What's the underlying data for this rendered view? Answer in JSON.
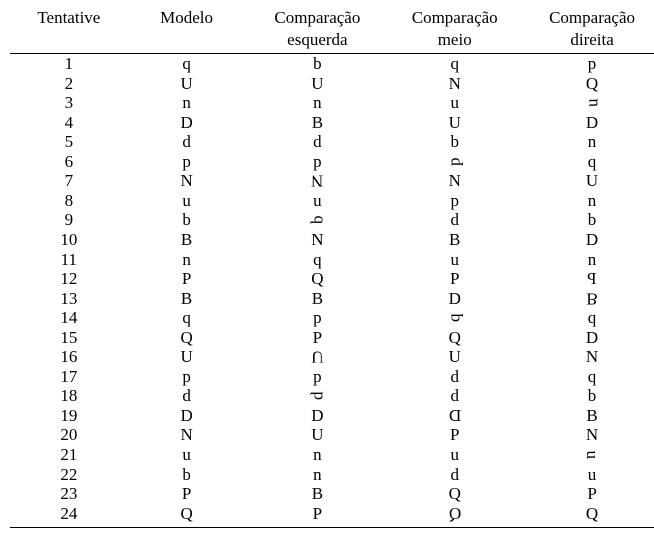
{
  "table": {
    "type": "table",
    "columns": [
      {
        "key": "c1",
        "label_top": "Tentative",
        "label_bottom": "",
        "width_pct": 18,
        "align": "center"
      },
      {
        "key": "c2",
        "label_top": "Modelo",
        "label_bottom": "",
        "width_pct": 18,
        "align": "center"
      },
      {
        "key": "c3",
        "label_top": "Comparação",
        "label_bottom": "esquerda",
        "width_pct": 22,
        "align": "center"
      },
      {
        "key": "c4",
        "label_top": "Comparação",
        "label_bottom": "meio",
        "width_pct": 20,
        "align": "center"
      },
      {
        "key": "c5",
        "label_top": "Comparação",
        "label_bottom": "direita",
        "width_pct": 22,
        "align": "center"
      }
    ],
    "header_border_color": "#000000",
    "footer_border_color": "#000000",
    "background_color": "#ffffff",
    "text_color": "#000000",
    "font_family": "Times New Roman",
    "header_fontsize_pt": 13,
    "body_fontsize_pt": 13,
    "rows": [
      {
        "n": "1",
        "m": {
          "t": "q"
        },
        "l": {
          "t": "b"
        },
        "mid": {
          "t": "q"
        },
        "r": {
          "t": "p"
        }
      },
      {
        "n": "2",
        "m": {
          "t": "U"
        },
        "l": {
          "t": "U"
        },
        "mid": {
          "t": "N"
        },
        "r": {
          "t": "Q"
        }
      },
      {
        "n": "3",
        "m": {
          "t": "n"
        },
        "l": {
          "t": "n"
        },
        "mid": {
          "t": "u"
        },
        "r": {
          "t": "u",
          "x": "rot270"
        }
      },
      {
        "n": "4",
        "m": {
          "t": "D"
        },
        "l": {
          "t": "B"
        },
        "mid": {
          "t": "U"
        },
        "r": {
          "t": "D"
        }
      },
      {
        "n": "5",
        "m": {
          "t": "d"
        },
        "l": {
          "t": "d"
        },
        "mid": {
          "t": "b"
        },
        "r": {
          "t": "n"
        }
      },
      {
        "n": "6",
        "m": {
          "t": "p"
        },
        "l": {
          "t": "p"
        },
        "mid": {
          "t": "p",
          "x": "rot270"
        },
        "r": {
          "t": "q"
        }
      },
      {
        "n": "7",
        "m": {
          "t": "N"
        },
        "l": {
          "t": "N",
          "x": "rot180"
        },
        "mid": {
          "t": "N"
        },
        "r": {
          "t": "U"
        }
      },
      {
        "n": "8",
        "m": {
          "t": "u"
        },
        "l": {
          "t": "u"
        },
        "mid": {
          "t": "p"
        },
        "r": {
          "t": "n"
        }
      },
      {
        "n": "9",
        "m": {
          "t": "b"
        },
        "l": {
          "t": "b",
          "x": "rot270"
        },
        "mid": {
          "t": "d"
        },
        "r": {
          "t": "b"
        }
      },
      {
        "n": "10",
        "m": {
          "t": "B"
        },
        "l": {
          "t": "N"
        },
        "mid": {
          "t": "B"
        },
        "r": {
          "t": "D"
        }
      },
      {
        "n": "11",
        "m": {
          "t": "n"
        },
        "l": {
          "t": "q"
        },
        "mid": {
          "t": "u"
        },
        "r": {
          "t": "n"
        }
      },
      {
        "n": "12",
        "m": {
          "t": "P"
        },
        "l": {
          "t": "Q"
        },
        "mid": {
          "t": "P"
        },
        "r": {
          "t": "P",
          "x": "mirh"
        }
      },
      {
        "n": "13",
        "m": {
          "t": "B"
        },
        "l": {
          "t": "B"
        },
        "mid": {
          "t": "D"
        },
        "r": {
          "t": "B",
          "x": "mirv"
        }
      },
      {
        "n": "14",
        "m": {
          "t": "q"
        },
        "l": {
          "t": "p"
        },
        "mid": {
          "t": "q",
          "x": "rot270"
        },
        "r": {
          "t": "q"
        }
      },
      {
        "n": "15",
        "m": {
          "t": "Q"
        },
        "l": {
          "t": "P"
        },
        "mid": {
          "t": "Q"
        },
        "r": {
          "t": "D"
        }
      },
      {
        "n": "16",
        "m": {
          "t": "U"
        },
        "l": {
          "t": "U",
          "x": "mirv"
        },
        "mid": {
          "t": "U"
        },
        "r": {
          "t": "N"
        }
      },
      {
        "n": "17",
        "m": {
          "t": "p"
        },
        "l": {
          "t": "p"
        },
        "mid": {
          "t": "d"
        },
        "r": {
          "t": "q"
        }
      },
      {
        "n": "18",
        "m": {
          "t": "d"
        },
        "l": {
          "t": "d",
          "x": "rot270"
        },
        "mid": {
          "t": "d"
        },
        "r": {
          "t": "b"
        }
      },
      {
        "n": "19",
        "m": {
          "t": "D"
        },
        "l": {
          "t": "D"
        },
        "mid": {
          "t": "D",
          "x": "mirh"
        },
        "r": {
          "t": "B"
        }
      },
      {
        "n": "20",
        "m": {
          "t": "N"
        },
        "l": {
          "t": "U"
        },
        "mid": {
          "t": "P"
        },
        "r": {
          "t": "N"
        }
      },
      {
        "n": "21",
        "m": {
          "t": "u"
        },
        "l": {
          "t": "n"
        },
        "mid": {
          "t": "u"
        },
        "r": {
          "t": "u",
          "x": "rot90"
        }
      },
      {
        "n": "22",
        "m": {
          "t": "b"
        },
        "l": {
          "t": "n"
        },
        "mid": {
          "t": "d"
        },
        "r": {
          "t": "u"
        }
      },
      {
        "n": "23",
        "m": {
          "t": "P"
        },
        "l": {
          "t": "B"
        },
        "mid": {
          "t": "Q"
        },
        "r": {
          "t": "P"
        }
      },
      {
        "n": "24",
        "m": {
          "t": "Q"
        },
        "l": {
          "t": "P"
        },
        "mid": {
          "t": "Q",
          "x": "mirh"
        },
        "r": {
          "t": "Q"
        }
      }
    ]
  }
}
